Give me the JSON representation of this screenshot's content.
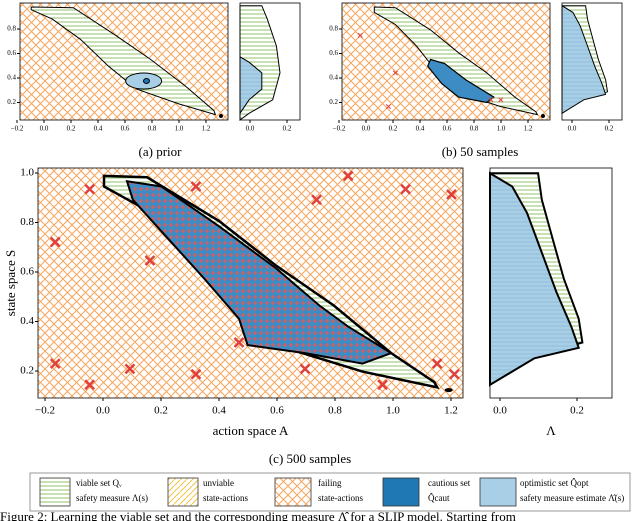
{
  "panels": [
    {
      "caption": "(a) prior",
      "xticks": [
        "−0.2",
        "0.0",
        "0.2",
        "0.4",
        "0.6",
        "0.8",
        "1.0",
        "1.2"
      ],
      "yticks": [
        "0.8",
        "0.6",
        "0.4",
        "0.2"
      ],
      "side_xticks": [
        "0.0",
        "0.2"
      ]
    },
    {
      "caption": "(b) 50 samples",
      "xticks": [
        "−0.2",
        "0.0",
        "0.2",
        "0.4",
        "0.6",
        "0.8",
        "1.0",
        "1.2"
      ],
      "yticks": [
        "0.8",
        "0.6",
        "0.4",
        "0.2"
      ],
      "side_xticks": [
        "0.0",
        "0.2"
      ]
    },
    {
      "caption": "(c) 500 samples",
      "xticks": [
        "−0.2",
        "0.0",
        "0.2",
        "0.4",
        "0.6",
        "0.8",
        "1.0",
        "1.2"
      ],
      "yticks": [
        "1.0",
        "0.8",
        "0.6",
        "0.4",
        "0.2"
      ],
      "side_xticks": [
        "0.0",
        "0.2"
      ],
      "xlabel": "action space A",
      "ylabel": "state space S",
      "side_xlabel": "Λ"
    }
  ],
  "legend": [
    {
      "line1": "viable set Qᵥ",
      "line2": "safety measure Λ(s)"
    },
    {
      "line1": "unviable",
      "line2": "state-actions"
    },
    {
      "line1": "failing",
      "line2": "state-actions"
    },
    {
      "line1": "cautious set",
      "line2": "Q̂caut"
    },
    {
      "line1": "optimistic set Q̂opt",
      "line2": "safety measure estimate Λ̂(s)"
    }
  ],
  "figure_caption": "Figure 2: Learning the viable set and the corresponding measure Λ̂ for a SLIP model. Starting from"
}
